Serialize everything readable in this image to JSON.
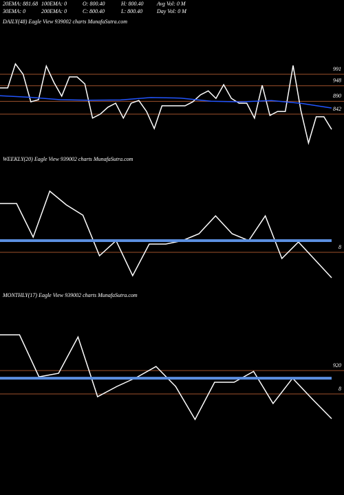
{
  "header": {
    "row1": [
      "20EMA: 881.68",
      "100EMA: 0",
      "O: 800.40",
      "H: 800.40",
      "Avg Vol: 0  M"
    ],
    "row2": [
      "30EMA: 0",
      "200EMA: 0",
      "C: 800.40",
      "L: 800.40",
      "Day Vol: 0  M"
    ]
  },
  "chart_data": [
    {
      "type": "line",
      "title": "DAILY(48) Eagle  View  939002  charts MunafaSutra.com",
      "ylim": [
        626,
        1166
      ],
      "yticks": [
        991,
        948,
        890,
        842
      ],
      "series": [
        {
          "color": "#ffffff",
          "line_width": 1.5,
          "values": [
            940,
            940,
            1030,
            991,
            888,
            896,
            1022,
            960,
            909,
            981,
            981,
            955,
            827,
            842,
            868,
            883,
            827,
            883,
            893,
            852,
            788,
            873,
            873,
            873,
            873,
            888,
            914,
            929,
            901,
            952,
            901,
            883,
            883,
            827,
            950,
            837,
            852,
            852,
            1024,
            857,
            734,
            832,
            832,
            785
          ]
        },
        {
          "color": "#2255ff",
          "line_width": 1.5,
          "values": [
            911,
            905,
            896,
            894,
            895,
            904,
            902,
            890,
            888,
            893,
            882,
            865
          ]
        }
      ]
    },
    {
      "type": "line",
      "title": "WEEKLY(20) Eagle  View  939002  charts MunafaSutra.com",
      "ylim": [
        608,
        1208
      ],
      "yticks": [
        {
          "value": 800,
          "label": "8"
        }
      ],
      "series": [
        {
          "color": "#ffffff",
          "line_width": 1.5,
          "values": [
            1084,
            1084,
            888,
            1156,
            1076,
            1016,
            780,
            868,
            664,
            848,
            848,
            868,
            908,
            1012,
            908,
            868,
            1012,
            764,
            860,
            756,
            652
          ]
        },
        {
          "color": "#5b8fe0",
          "line_width": 4,
          "values": [
            868,
            868
          ]
        }
      ]
    },
    {
      "type": "line",
      "title": "MONTHLY(17) Eagle  View  939002  charts MunafaSutra.com",
      "ylim": [
        634,
        1164
      ],
      "yticks": [
        920,
        {
          "value": 800,
          "label": "8"
        }
      ],
      "series": [
        {
          "color": "#ffffff",
          "line_width": 1.5,
          "values": [
            1104,
            1104,
            888,
            906,
            1093,
            786,
            839,
            885,
            941,
            839,
            669,
            860,
            860,
            916,
            751,
            881,
            775,
            673
          ]
        },
        {
          "color": "#5b8fe0",
          "line_width": 4,
          "values": [
            881,
            881
          ]
        }
      ]
    }
  ]
}
